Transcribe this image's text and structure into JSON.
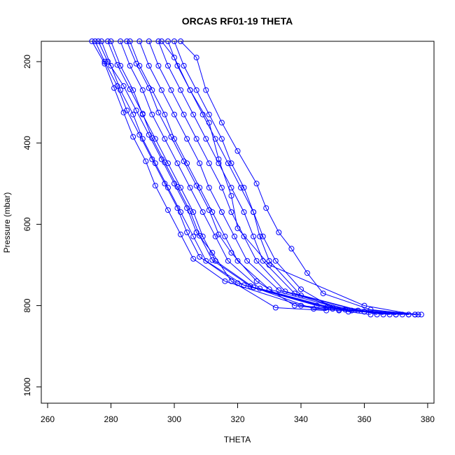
{
  "chart_data": {
    "type": "line",
    "title": "ORCAS RF01-19 THETA",
    "xlabel": "THETA",
    "ylabel": "Pressure (mbar)",
    "xlim": [
      258,
      382
    ],
    "ylim": [
      1040,
      150
    ],
    "y_reversed": true,
    "xticks": [
      260,
      280,
      300,
      320,
      340,
      360,
      380
    ],
    "yticks": [
      200,
      400,
      600,
      800,
      1000
    ],
    "line_color": "#0000ff",
    "marker": "open-circle",
    "grid": false,
    "legend": "none",
    "series": [
      {
        "x": [
          275,
          278,
          282,
          285,
          289,
          293,
          297,
          301,
          304,
          308,
          320,
          345,
          378
        ],
        "y": [
          150,
          200,
          260,
          320,
          380,
          440,
          500,
          560,
          620,
          680,
          745,
          800,
          822
        ]
      },
      {
        "x": [
          277,
          280,
          283,
          287,
          290,
          294,
          298,
          302,
          306,
          310,
          322,
          348,
          376
        ],
        "y": [
          150,
          210,
          270,
          330,
          390,
          450,
          510,
          570,
          630,
          690,
          750,
          805,
          822
        ]
      },
      {
        "x": [
          280,
          283,
          287,
          290,
          294,
          298,
          302,
          306,
          309,
          313,
          325,
          350,
          374
        ],
        "y": [
          150,
          210,
          270,
          330,
          390,
          450,
          510,
          570,
          630,
          690,
          755,
          808,
          822
        ]
      },
      {
        "x": [
          283,
          286,
          290,
          293,
          297,
          301,
          305,
          309,
          313,
          317,
          327,
          352,
          372
        ],
        "y": [
          150,
          210,
          270,
          330,
          390,
          450,
          510,
          570,
          630,
          690,
          758,
          810,
          822
        ]
      },
      {
        "x": [
          286,
          289,
          293,
          297,
          300,
          304,
          308,
          312,
          316,
          320,
          330,
          354,
          370
        ],
        "y": [
          150,
          210,
          270,
          330,
          390,
          450,
          510,
          570,
          630,
          690,
          760,
          810,
          822
        ]
      },
      {
        "x": [
          289,
          292,
          296,
          300,
          304,
          308,
          311,
          315,
          319,
          323,
          333,
          356,
          368
        ],
        "y": [
          150,
          210,
          270,
          330,
          390,
          450,
          510,
          570,
          630,
          690,
          762,
          812,
          822
        ]
      },
      {
        "x": [
          292,
          295,
          299,
          303,
          307,
          311,
          315,
          318,
          322,
          326,
          335,
          358,
          366
        ],
        "y": [
          150,
          210,
          270,
          330,
          390,
          450,
          510,
          570,
          630,
          690,
          765,
          812,
          822
        ]
      },
      {
        "x": [
          295,
          298,
          302,
          306,
          310,
          314,
          318,
          322,
          325,
          328,
          338,
          360,
          364
        ],
        "y": [
          150,
          210,
          270,
          330,
          390,
          450,
          510,
          570,
          630,
          690,
          770,
          815,
          822
        ]
      },
      {
        "x": [
          298,
          301,
          305,
          309,
          313,
          317,
          321,
          325,
          327,
          330,
          340,
          355,
          362
        ],
        "y": [
          150,
          210,
          270,
          330,
          390,
          450,
          510,
          570,
          630,
          690,
          775,
          815,
          822
        ]
      },
      {
        "x": [
          276,
          279,
          284,
          288,
          292,
          296,
          300,
          304,
          307,
          312,
          318,
          332,
          348
        ],
        "y": [
          150,
          200,
          260,
          320,
          380,
          440,
          500,
          560,
          620,
          670,
          740,
          805,
          812
        ]
      },
      {
        "x": [
          285,
          288,
          292,
          295,
          299,
          303,
          307,
          311,
          314,
          318,
          326,
          338,
          352
        ],
        "y": [
          150,
          205,
          265,
          325,
          385,
          445,
          505,
          565,
          625,
          670,
          740,
          800,
          812
        ]
      },
      {
        "x": [
          300,
          303,
          307,
          311,
          315,
          318,
          322,
          325,
          328,
          332,
          340,
          350,
          360
        ],
        "y": [
          150,
          210,
          270,
          330,
          390,
          450,
          510,
          570,
          630,
          690,
          760,
          805,
          815
        ]
      },
      {
        "x": [
          302,
          307,
          310,
          315,
          320,
          326,
          329,
          333,
          337,
          342,
          347,
          362,
          377
        ],
        "y": [
          150,
          190,
          270,
          350,
          420,
          500,
          560,
          620,
          660,
          720,
          770,
          810,
          822
        ]
      },
      {
        "x": [
          296,
          300,
          305,
          311,
          314,
          318,
          320,
          330,
          360,
          376
        ],
        "y": [
          150,
          190,
          270,
          350,
          440,
          530,
          610,
          700,
          800,
          822
        ]
      },
      {
        "x": [
          274,
          278,
          281,
          284,
          287,
          291,
          294,
          298,
          302,
          306,
          316,
          340,
          370
        ],
        "y": [
          150,
          205,
          265,
          325,
          385,
          445,
          505,
          565,
          625,
          685,
          740,
          800,
          822
        ]
      },
      {
        "x": [
          279,
          282,
          286,
          290,
          293,
          297,
          301,
          305,
          308,
          312,
          324,
          344,
          374
        ],
        "y": [
          150,
          208,
          268,
          328,
          388,
          448,
          508,
          568,
          628,
          688,
          752,
          808,
          822
        ]
      }
    ]
  }
}
